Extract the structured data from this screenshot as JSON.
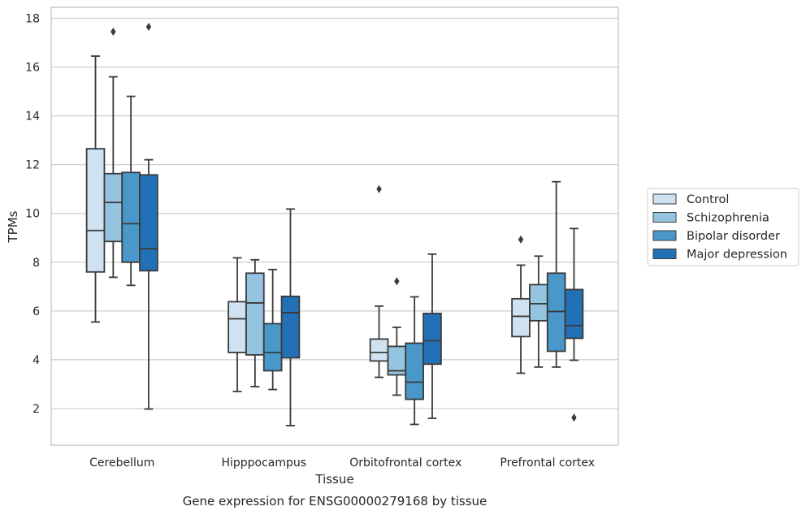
{
  "chart_data": {
    "type": "box",
    "caption": "Gene expression for ENSG00000279168 by tissue",
    "xlabel": "Tissue",
    "ylabel": "TPMs",
    "ylim": [
      0.5,
      18.45
    ],
    "yticks": [
      2,
      4,
      6,
      8,
      10,
      12,
      14,
      16,
      18
    ],
    "grid": true,
    "legend_position": "right",
    "categories": [
      "Cerebellum",
      "Hipppocampus",
      "Orbitofrontal cortex",
      "Prefrontal cortex"
    ],
    "series": [
      {
        "name": "Control",
        "color": "#d0e1f2",
        "boxes": [
          {
            "whisker_low": 5.55,
            "q1": 7.6,
            "median": 9.3,
            "q3": 12.65,
            "whisker_high": 16.45,
            "outliers": []
          },
          {
            "whisker_low": 2.7,
            "q1": 4.3,
            "median": 5.68,
            "q3": 6.38,
            "whisker_high": 8.18,
            "outliers": []
          },
          {
            "whisker_low": 3.28,
            "q1": 3.95,
            "median": 4.3,
            "q3": 4.85,
            "whisker_high": 6.2,
            "outliers": [
              11.0
            ]
          },
          {
            "whisker_low": 3.45,
            "q1": 4.95,
            "median": 5.78,
            "q3": 6.5,
            "whisker_high": 7.88,
            "outliers": [
              8.93
            ]
          }
        ]
      },
      {
        "name": "Schizophrenia",
        "color": "#94c4df",
        "boxes": [
          {
            "whisker_low": 7.38,
            "q1": 8.85,
            "median": 10.45,
            "q3": 11.63,
            "whisker_high": 15.6,
            "outliers": [
              17.45
            ]
          },
          {
            "whisker_low": 2.9,
            "q1": 4.2,
            "median": 6.33,
            "q3": 7.55,
            "whisker_high": 8.1,
            "outliers": []
          },
          {
            "whisker_low": 2.55,
            "q1": 3.38,
            "median": 3.55,
            "q3": 4.55,
            "whisker_high": 5.33,
            "outliers": [
              7.22
            ]
          },
          {
            "whisker_low": 3.7,
            "q1": 5.6,
            "median": 6.3,
            "q3": 7.08,
            "whisker_high": 8.25,
            "outliers": []
          }
        ]
      },
      {
        "name": "Bipolar disorder",
        "color": "#4a98c9",
        "boxes": [
          {
            "whisker_low": 7.05,
            "q1": 8.0,
            "median": 9.58,
            "q3": 11.68,
            "whisker_high": 14.8,
            "outliers": []
          },
          {
            "whisker_low": 2.78,
            "q1": 3.55,
            "median": 4.3,
            "q3": 5.48,
            "whisker_high": 7.7,
            "outliers": []
          },
          {
            "whisker_low": 1.35,
            "q1": 2.38,
            "median": 3.08,
            "q3": 4.68,
            "whisker_high": 6.58,
            "outliers": []
          },
          {
            "whisker_low": 3.7,
            "q1": 4.35,
            "median": 5.98,
            "q3": 7.55,
            "whisker_high": 11.3,
            "outliers": []
          }
        ]
      },
      {
        "name": "Major depression",
        "color": "#2270b5",
        "boxes": [
          {
            "whisker_low": 1.98,
            "q1": 7.65,
            "median": 8.55,
            "q3": 11.58,
            "whisker_high": 12.2,
            "outliers": [
              17.65
            ]
          },
          {
            "whisker_low": 1.3,
            "q1": 4.08,
            "median": 5.93,
            "q3": 6.6,
            "whisker_high": 10.18,
            "outliers": []
          },
          {
            "whisker_low": 1.6,
            "q1": 3.82,
            "median": 4.78,
            "q3": 5.9,
            "whisker_high": 8.33,
            "outliers": []
          },
          {
            "whisker_low": 3.98,
            "q1": 4.88,
            "median": 5.4,
            "q3": 6.88,
            "whisker_high": 9.38,
            "outliers": [
              1.63
            ]
          }
        ]
      }
    ]
  },
  "colors": {
    "grid": "#cccccc",
    "frame": "#cccccc",
    "box_edge": "#3a3a3a"
  }
}
